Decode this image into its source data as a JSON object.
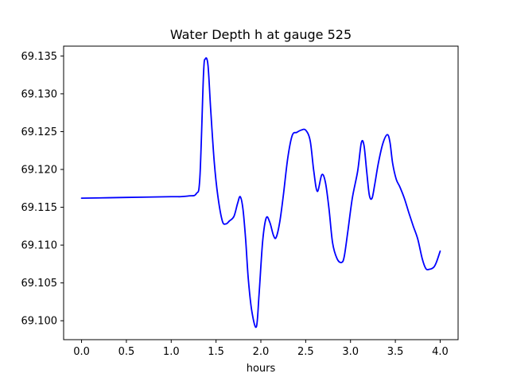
{
  "chart_data": {
    "type": "line",
    "title": "Water Depth h at gauge 525",
    "xlabel": "hours",
    "ylabel": "",
    "xlim": [
      -0.2,
      4.2
    ],
    "ylim": [
      69.0975,
      69.1363
    ],
    "xticks": [
      {
        "value": 0.0,
        "label": "0.0"
      },
      {
        "value": 0.5,
        "label": "0.5"
      },
      {
        "value": 1.0,
        "label": "1.0"
      },
      {
        "value": 1.5,
        "label": "1.5"
      },
      {
        "value": 2.0,
        "label": "2.0"
      },
      {
        "value": 2.5,
        "label": "2.5"
      },
      {
        "value": 3.0,
        "label": "3.0"
      },
      {
        "value": 3.5,
        "label": "3.5"
      },
      {
        "value": 4.0,
        "label": "4.0"
      }
    ],
    "yticks": [
      {
        "value": 69.1,
        "label": "69.100"
      },
      {
        "value": 69.105,
        "label": "69.105"
      },
      {
        "value": 69.11,
        "label": "69.110"
      },
      {
        "value": 69.115,
        "label": "69.115"
      },
      {
        "value": 69.12,
        "label": "69.120"
      },
      {
        "value": 69.125,
        "label": "69.125"
      },
      {
        "value": 69.13,
        "label": "69.130"
      },
      {
        "value": 69.135,
        "label": "69.135"
      }
    ],
    "grid": false,
    "series": [
      {
        "color": "#0000ff",
        "x": [
          0.0,
          0.5,
          1.0,
          1.1,
          1.2,
          1.28,
          1.32,
          1.36,
          1.38,
          1.41,
          1.44,
          1.48,
          1.52,
          1.57,
          1.61,
          1.65,
          1.7,
          1.74,
          1.77,
          1.8,
          1.83,
          1.86,
          1.9,
          1.95,
          1.98,
          2.02,
          2.06,
          2.1,
          2.14,
          2.17,
          2.21,
          2.25,
          2.3,
          2.35,
          2.4,
          2.45,
          2.5,
          2.55,
          2.59,
          2.63,
          2.68,
          2.72,
          2.76,
          2.8,
          2.85,
          2.9,
          2.93,
          2.97,
          3.02,
          3.08,
          3.12,
          3.15,
          3.18,
          3.21,
          3.24,
          3.27,
          3.31,
          3.36,
          3.41,
          3.44,
          3.47,
          3.51,
          3.55,
          3.6,
          3.65,
          3.7,
          3.75,
          3.8,
          3.84,
          3.88,
          3.93,
          3.96,
          4.0
        ],
        "y": [
          69.1162,
          69.1163,
          69.1164,
          69.1164,
          69.1165,
          69.1168,
          69.119,
          69.1325,
          69.1346,
          69.1338,
          69.128,
          69.121,
          69.1165,
          69.1132,
          69.1128,
          69.1132,
          69.1138,
          69.1155,
          69.1164,
          69.1148,
          69.1108,
          69.1055,
          69.1012,
          69.0992,
          69.1035,
          69.1105,
          69.1136,
          69.113,
          69.1113,
          69.111,
          69.113,
          69.1165,
          69.1215,
          69.1245,
          69.1249,
          69.1252,
          69.1252,
          69.1238,
          69.1198,
          69.1171,
          69.1193,
          69.1183,
          69.1148,
          69.1103,
          69.1082,
          69.1077,
          69.1085,
          69.1118,
          69.1162,
          69.1198,
          69.1235,
          69.1232,
          69.1198,
          69.1166,
          69.1162,
          69.118,
          69.1208,
          69.1234,
          69.1246,
          69.1236,
          69.1208,
          69.1187,
          69.1177,
          69.1162,
          69.1143,
          69.1125,
          69.1108,
          69.1082,
          69.1069,
          69.1068,
          69.1071,
          69.1078,
          69.1092
        ]
      }
    ]
  }
}
